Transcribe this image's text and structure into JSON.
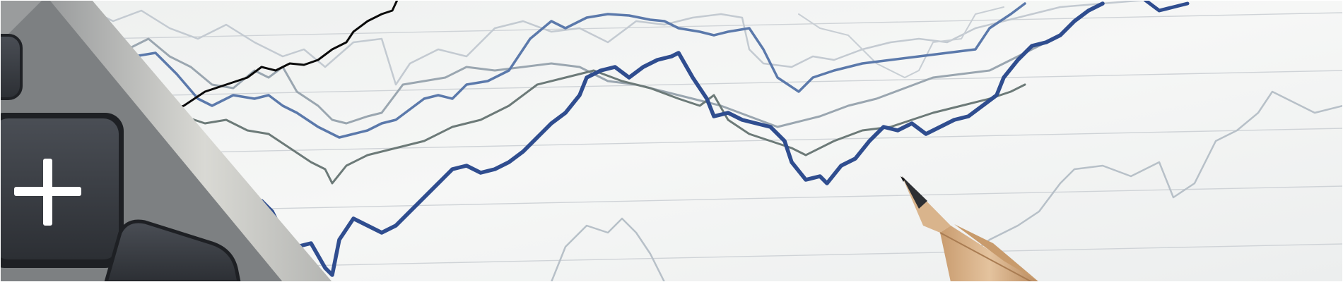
{
  "photo": {
    "subject": "stock-chart-printout-with-calculator-and-pencil",
    "paper_color": "#f5f6f5",
    "grid_line_color": "#c9cdd1",
    "series_colors": {
      "navy": "#2f4d8f",
      "steel_blue": "#5b79ab",
      "gray": "#6c7a78",
      "light_gray": "#b7c0c8",
      "black": "#0a0a0a"
    },
    "calculator": {
      "body_color": "#8a8c8e",
      "bezel_color": "#c4c4c0",
      "key_color": "#3a3d42",
      "keys": [
        {
          "icon": "plus-icon"
        },
        {
          "icon": "blank-key"
        },
        {
          "icon": "blank-key"
        }
      ]
    },
    "pencil": {
      "wood_color": "#d9b48c",
      "graphite_color": "#2d2f33"
    }
  }
}
